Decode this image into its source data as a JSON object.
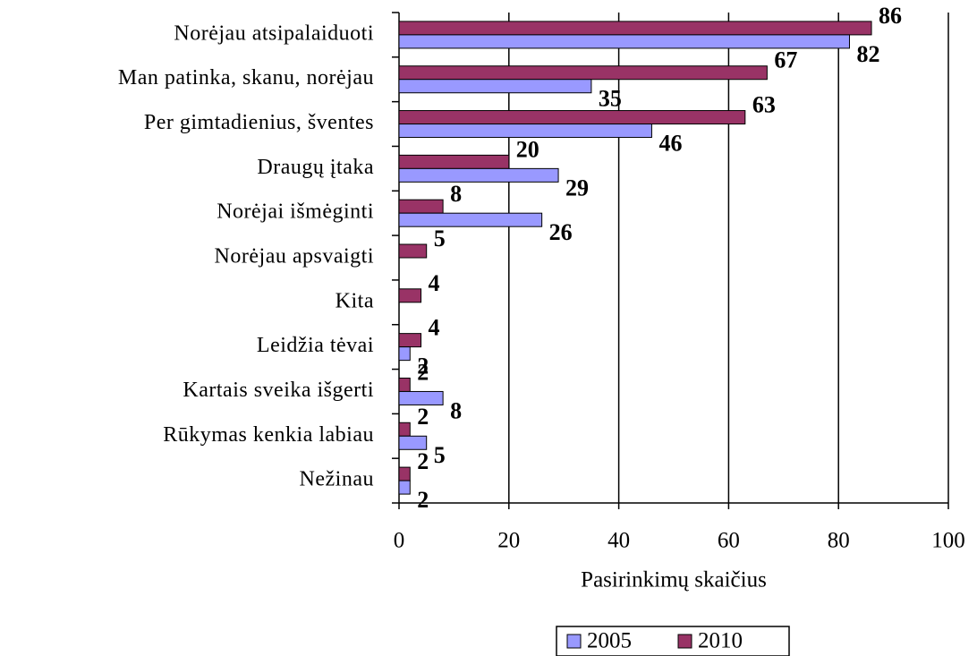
{
  "chart_data": {
    "type": "bar",
    "orientation": "horizontal",
    "xlabel": "Pasirinkimų skaičius",
    "categories": [
      "Norėjau atsipalaiduoti",
      "Man patinka, skanu, norėjau",
      "Per gimtadienius, šventes",
      "Draugų įtaka",
      "Norėjai išmėginti",
      "Norėjau apsvaigti",
      "Kita",
      "Leidžia tėvai",
      "Kartais sveika išgerti",
      "Rūkymas kenkia labiau",
      "Nežinau"
    ],
    "series": [
      {
        "name": "2005",
        "color": "#9999ff",
        "values": [
          82,
          35,
          46,
          29,
          26,
          null,
          null,
          2,
          8,
          5,
          2
        ]
      },
      {
        "name": "2010",
        "color": "#993366",
        "values": [
          86,
          67,
          63,
          20,
          8,
          5,
          4,
          4,
          2,
          2,
          2
        ]
      }
    ],
    "xlim": [
      0,
      100
    ],
    "xticks": [
      0,
      20,
      40,
      60,
      80,
      100
    ],
    "grid": true,
    "legend": "bottom"
  }
}
